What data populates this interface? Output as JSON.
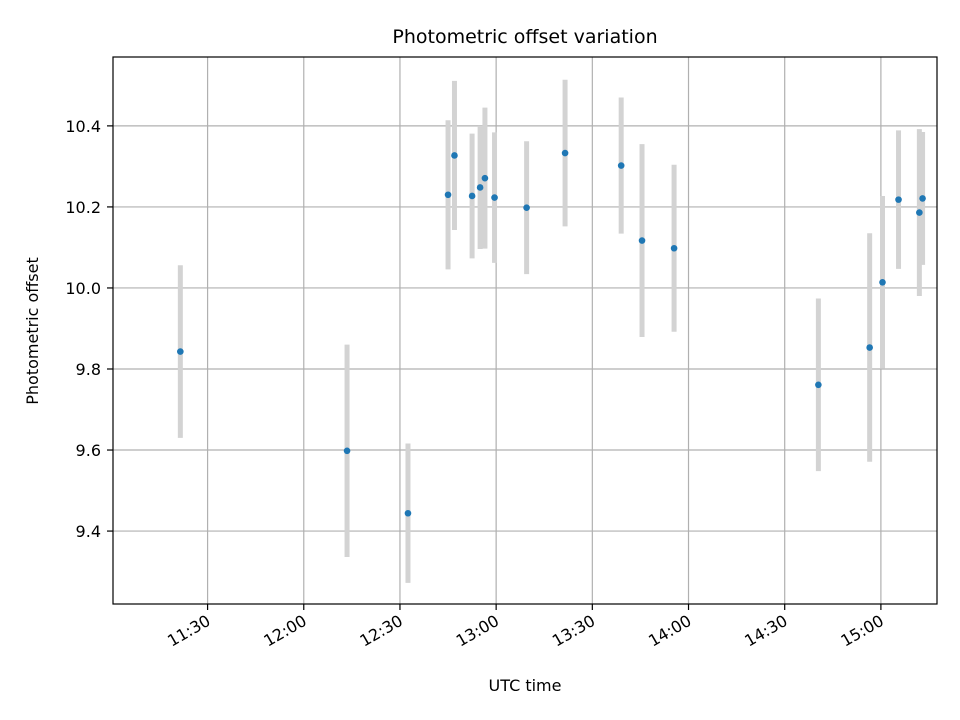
{
  "chart_data": {
    "type": "scatter",
    "title": "Photometric offset variation",
    "xlabel": "UTC time",
    "ylabel": "Photometric offset",
    "x_tick_labels": [
      "11:30",
      "12:00",
      "12:30",
      "13:00",
      "13:30",
      "14:00",
      "14:30",
      "15:00"
    ],
    "x_tick_values_min": [
      690,
      720,
      750,
      780,
      810,
      840,
      870,
      900
    ],
    "xlim_min": [
      660.5,
      917.5
    ],
    "y_tick_labels": [
      "9.4",
      "9.6",
      "9.8",
      "10.0",
      "10.2",
      "10.4"
    ],
    "y_tick_values": [
      9.4,
      9.6,
      9.8,
      10.0,
      10.2,
      10.4
    ],
    "ylim": [
      9.22,
      10.57
    ],
    "grid": true,
    "marker_color": "#1f77b4",
    "errorbar_color": "#d3d3d3",
    "points": [
      {
        "t": "11:21:30",
        "y": 9.843,
        "err": 0.213
      },
      {
        "t": "12:13:30",
        "y": 9.598,
        "err": 0.262
      },
      {
        "t": "12:32:30",
        "y": 9.444,
        "err": 0.172
      },
      {
        "t": "12:45:00",
        "y": 10.23,
        "err": 0.184
      },
      {
        "t": "12:47:00",
        "y": 10.327,
        "err": 0.184
      },
      {
        "t": "12:52:30",
        "y": 10.227,
        "err": 0.154
      },
      {
        "t": "12:55:00",
        "y": 10.248,
        "err": 0.152
      },
      {
        "t": "12:56:30",
        "y": 10.271,
        "err": 0.174
      },
      {
        "t": "12:59:30",
        "y": 10.223,
        "err": 0.161
      },
      {
        "t": "13:09:30",
        "y": 10.198,
        "err": 0.164
      },
      {
        "t": "13:21:30",
        "y": 10.333,
        "err": 0.181
      },
      {
        "t": "13:39:00",
        "y": 10.302,
        "err": 0.168
      },
      {
        "t": "13:45:30",
        "y": 10.117,
        "err": 0.238
      },
      {
        "t": "13:55:30",
        "y": 10.098,
        "err": 0.206
      },
      {
        "t": "14:40:30",
        "y": 9.761,
        "err": 0.213
      },
      {
        "t": "14:56:30",
        "y": 9.853,
        "err": 0.282
      },
      {
        "t": "15:00:30",
        "y": 10.014,
        "err": 0.213
      },
      {
        "t": "15:05:30",
        "y": 10.218,
        "err": 0.171
      },
      {
        "t": "15:12:00",
        "y": 10.186,
        "err": 0.206
      },
      {
        "t": "15:13:00",
        "y": 10.221,
        "err": 0.164
      }
    ]
  }
}
